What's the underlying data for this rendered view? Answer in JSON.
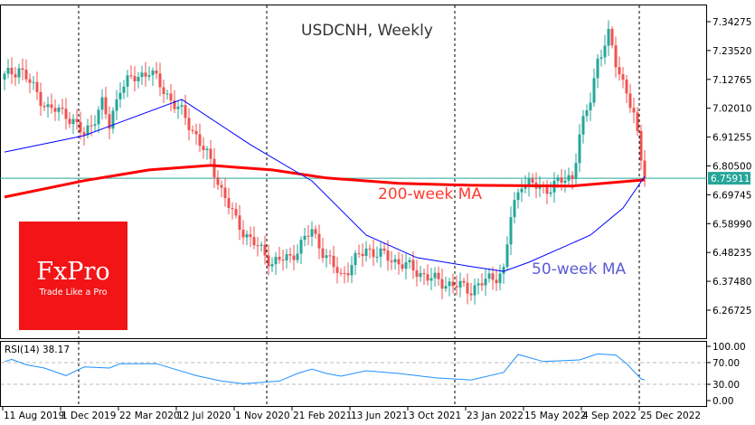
{
  "chart_data": {
    "type": "candlestick",
    "title": "USDCNH, Weekly",
    "symbol": "USDCNH",
    "timeframe": "Weekly",
    "y_ticks": [
      "7.34275",
      "7.23520",
      "7.12765",
      "7.02010",
      "6.91255",
      "6.80500",
      "6.69745",
      "6.58990",
      "6.48235",
      "6.37480",
      "6.26725"
    ],
    "ylim": [
      6.19,
      7.4
    ],
    "x_ticks": [
      "11 Aug 2019",
      "1 Dec 2019",
      "22 Mar 2020",
      "12 Jul 2020",
      "1 Nov 2020",
      "21 Feb 2021",
      "13 Jun 2021",
      "3 Oct 2021",
      "23 Jan 2022",
      "15 May 2022",
      "4 Sep 2022",
      "25 Dec 2022"
    ],
    "x_tick_dates": [
      "2019-08-11",
      "2019-12-01",
      "2020-03-22",
      "2020-07-12",
      "2020-11-01",
      "2021-02-21",
      "2021-06-13",
      "2021-10-03",
      "2022-01-23",
      "2022-05-15",
      "2022-09-04",
      "2022-12-25"
    ],
    "period_separators": [
      "2020-01-05",
      "2021-01-03",
      "2022-01-02",
      "2022-12-25"
    ],
    "current_price": "6.75911",
    "colors": {
      "up": "#26a69a",
      "down": "#ef5350",
      "ma200": "#ff0000",
      "ma50": "#0000ff",
      "rsi": "#1e90ff",
      "price_line": "#26a69a"
    },
    "close_approx": [
      [
        "2019-08-11",
        7.137
      ],
      [
        "2019-09-08",
        7.171
      ],
      [
        "2019-11-03",
        7.019
      ],
      [
        "2019-12-08",
        7.002
      ],
      [
        "2020-01-12",
        6.918
      ],
      [
        "2020-02-16",
        7.036
      ],
      [
        "2020-03-01",
        6.952
      ],
      [
        "2020-03-22",
        7.103
      ],
      [
        "2020-05-17",
        7.161
      ],
      [
        "2020-06-14",
        7.087
      ],
      [
        "2020-07-19",
        7.002
      ],
      [
        "2020-08-16",
        6.918
      ],
      [
        "2020-09-13",
        6.817
      ],
      [
        "2020-10-04",
        6.716
      ],
      [
        "2020-11-01",
        6.598
      ],
      [
        "2020-11-29",
        6.53
      ],
      [
        "2021-01-10",
        6.446
      ],
      [
        "2021-02-14",
        6.463
      ],
      [
        "2021-03-28",
        6.564
      ],
      [
        "2021-04-25",
        6.463
      ],
      [
        "2021-05-23",
        6.395
      ],
      [
        "2021-07-11",
        6.496
      ],
      [
        "2021-09-12",
        6.446
      ],
      [
        "2021-11-21",
        6.378
      ],
      [
        "2022-01-30",
        6.345
      ],
      [
        "2022-04-03",
        6.412
      ],
      [
        "2022-04-17",
        6.615
      ],
      [
        "2022-05-08",
        6.749
      ],
      [
        "2022-06-19",
        6.716
      ],
      [
        "2022-08-14",
        6.766
      ],
      [
        "2022-08-28",
        6.918
      ],
      [
        "2022-09-18",
        7.053
      ],
      [
        "2022-10-02",
        7.204
      ],
      [
        "2022-10-23",
        7.289
      ],
      [
        "2022-11-06",
        7.188
      ],
      [
        "2022-11-27",
        7.087
      ],
      [
        "2022-12-11",
        6.985
      ],
      [
        "2023-01-01",
        6.759
      ]
    ],
    "ma200": {
      "label": "200-week MA",
      "points": [
        [
          "2019-08-11",
          6.689
        ],
        [
          "2020-01-12",
          6.75
        ],
        [
          "2020-05-17",
          6.79
        ],
        [
          "2020-09-13",
          6.807
        ],
        [
          "2021-01-10",
          6.79
        ],
        [
          "2021-04-25",
          6.76
        ],
        [
          "2021-09-12",
          6.74
        ],
        [
          "2022-01-30",
          6.733
        ],
        [
          "2022-08-14",
          6.73
        ],
        [
          "2023-01-01",
          6.753
        ]
      ]
    },
    "ma50": {
      "label": "50-week MA",
      "points": [
        [
          "2019-08-11",
          6.857
        ],
        [
          "2020-01-12",
          6.918
        ],
        [
          "2020-07-19",
          7.053
        ],
        [
          "2020-11-29",
          6.884
        ],
        [
          "2021-03-28",
          6.749
        ],
        [
          "2021-07-11",
          6.547
        ],
        [
          "2021-10-17",
          6.463
        ],
        [
          "2022-01-30",
          6.43
        ],
        [
          "2022-04-03",
          6.412
        ],
        [
          "2022-05-22",
          6.446
        ],
        [
          "2022-09-18",
          6.547
        ],
        [
          "2022-11-20",
          6.648
        ],
        [
          "2023-01-01",
          6.766
        ]
      ]
    },
    "rsi": {
      "label": "RSI(14) 38.17",
      "ticks": [
        "100.00",
        "70.00",
        "30.00",
        "0.00"
      ],
      "levels": [
        70,
        30
      ],
      "ylim": [
        0,
        100
      ],
      "points": [
        [
          "2019-08-11",
          72
        ],
        [
          "2019-08-25",
          76
        ],
        [
          "2019-09-22",
          66
        ],
        [
          "2019-10-27",
          60
        ],
        [
          "2019-12-08",
          46
        ],
        [
          "2020-01-12",
          62
        ],
        [
          "2020-03-01",
          60
        ],
        [
          "2020-03-22",
          68
        ],
        [
          "2020-05-31",
          68
        ],
        [
          "2020-07-05",
          58
        ],
        [
          "2020-08-16",
          46
        ],
        [
          "2020-10-04",
          36
        ],
        [
          "2020-11-15",
          31
        ],
        [
          "2020-12-27",
          34
        ],
        [
          "2021-01-24",
          36
        ],
        [
          "2021-02-28",
          50
        ],
        [
          "2021-03-28",
          58
        ],
        [
          "2021-04-25",
          50
        ],
        [
          "2021-05-23",
          45
        ],
        [
          "2021-07-11",
          55
        ],
        [
          "2021-09-12",
          50
        ],
        [
          "2021-11-21",
          42
        ],
        [
          "2022-01-30",
          38
        ],
        [
          "2022-04-03",
          52
        ],
        [
          "2022-05-01",
          85
        ],
        [
          "2022-06-19",
          72
        ],
        [
          "2022-08-28",
          75
        ],
        [
          "2022-10-02",
          86
        ],
        [
          "2022-11-06",
          84
        ],
        [
          "2022-11-27",
          68
        ],
        [
          "2022-12-25",
          40
        ],
        [
          "2023-01-01",
          38.17
        ]
      ]
    }
  },
  "logo": {
    "brand": "FxPro",
    "tagline": "Trade Like a Pro"
  }
}
